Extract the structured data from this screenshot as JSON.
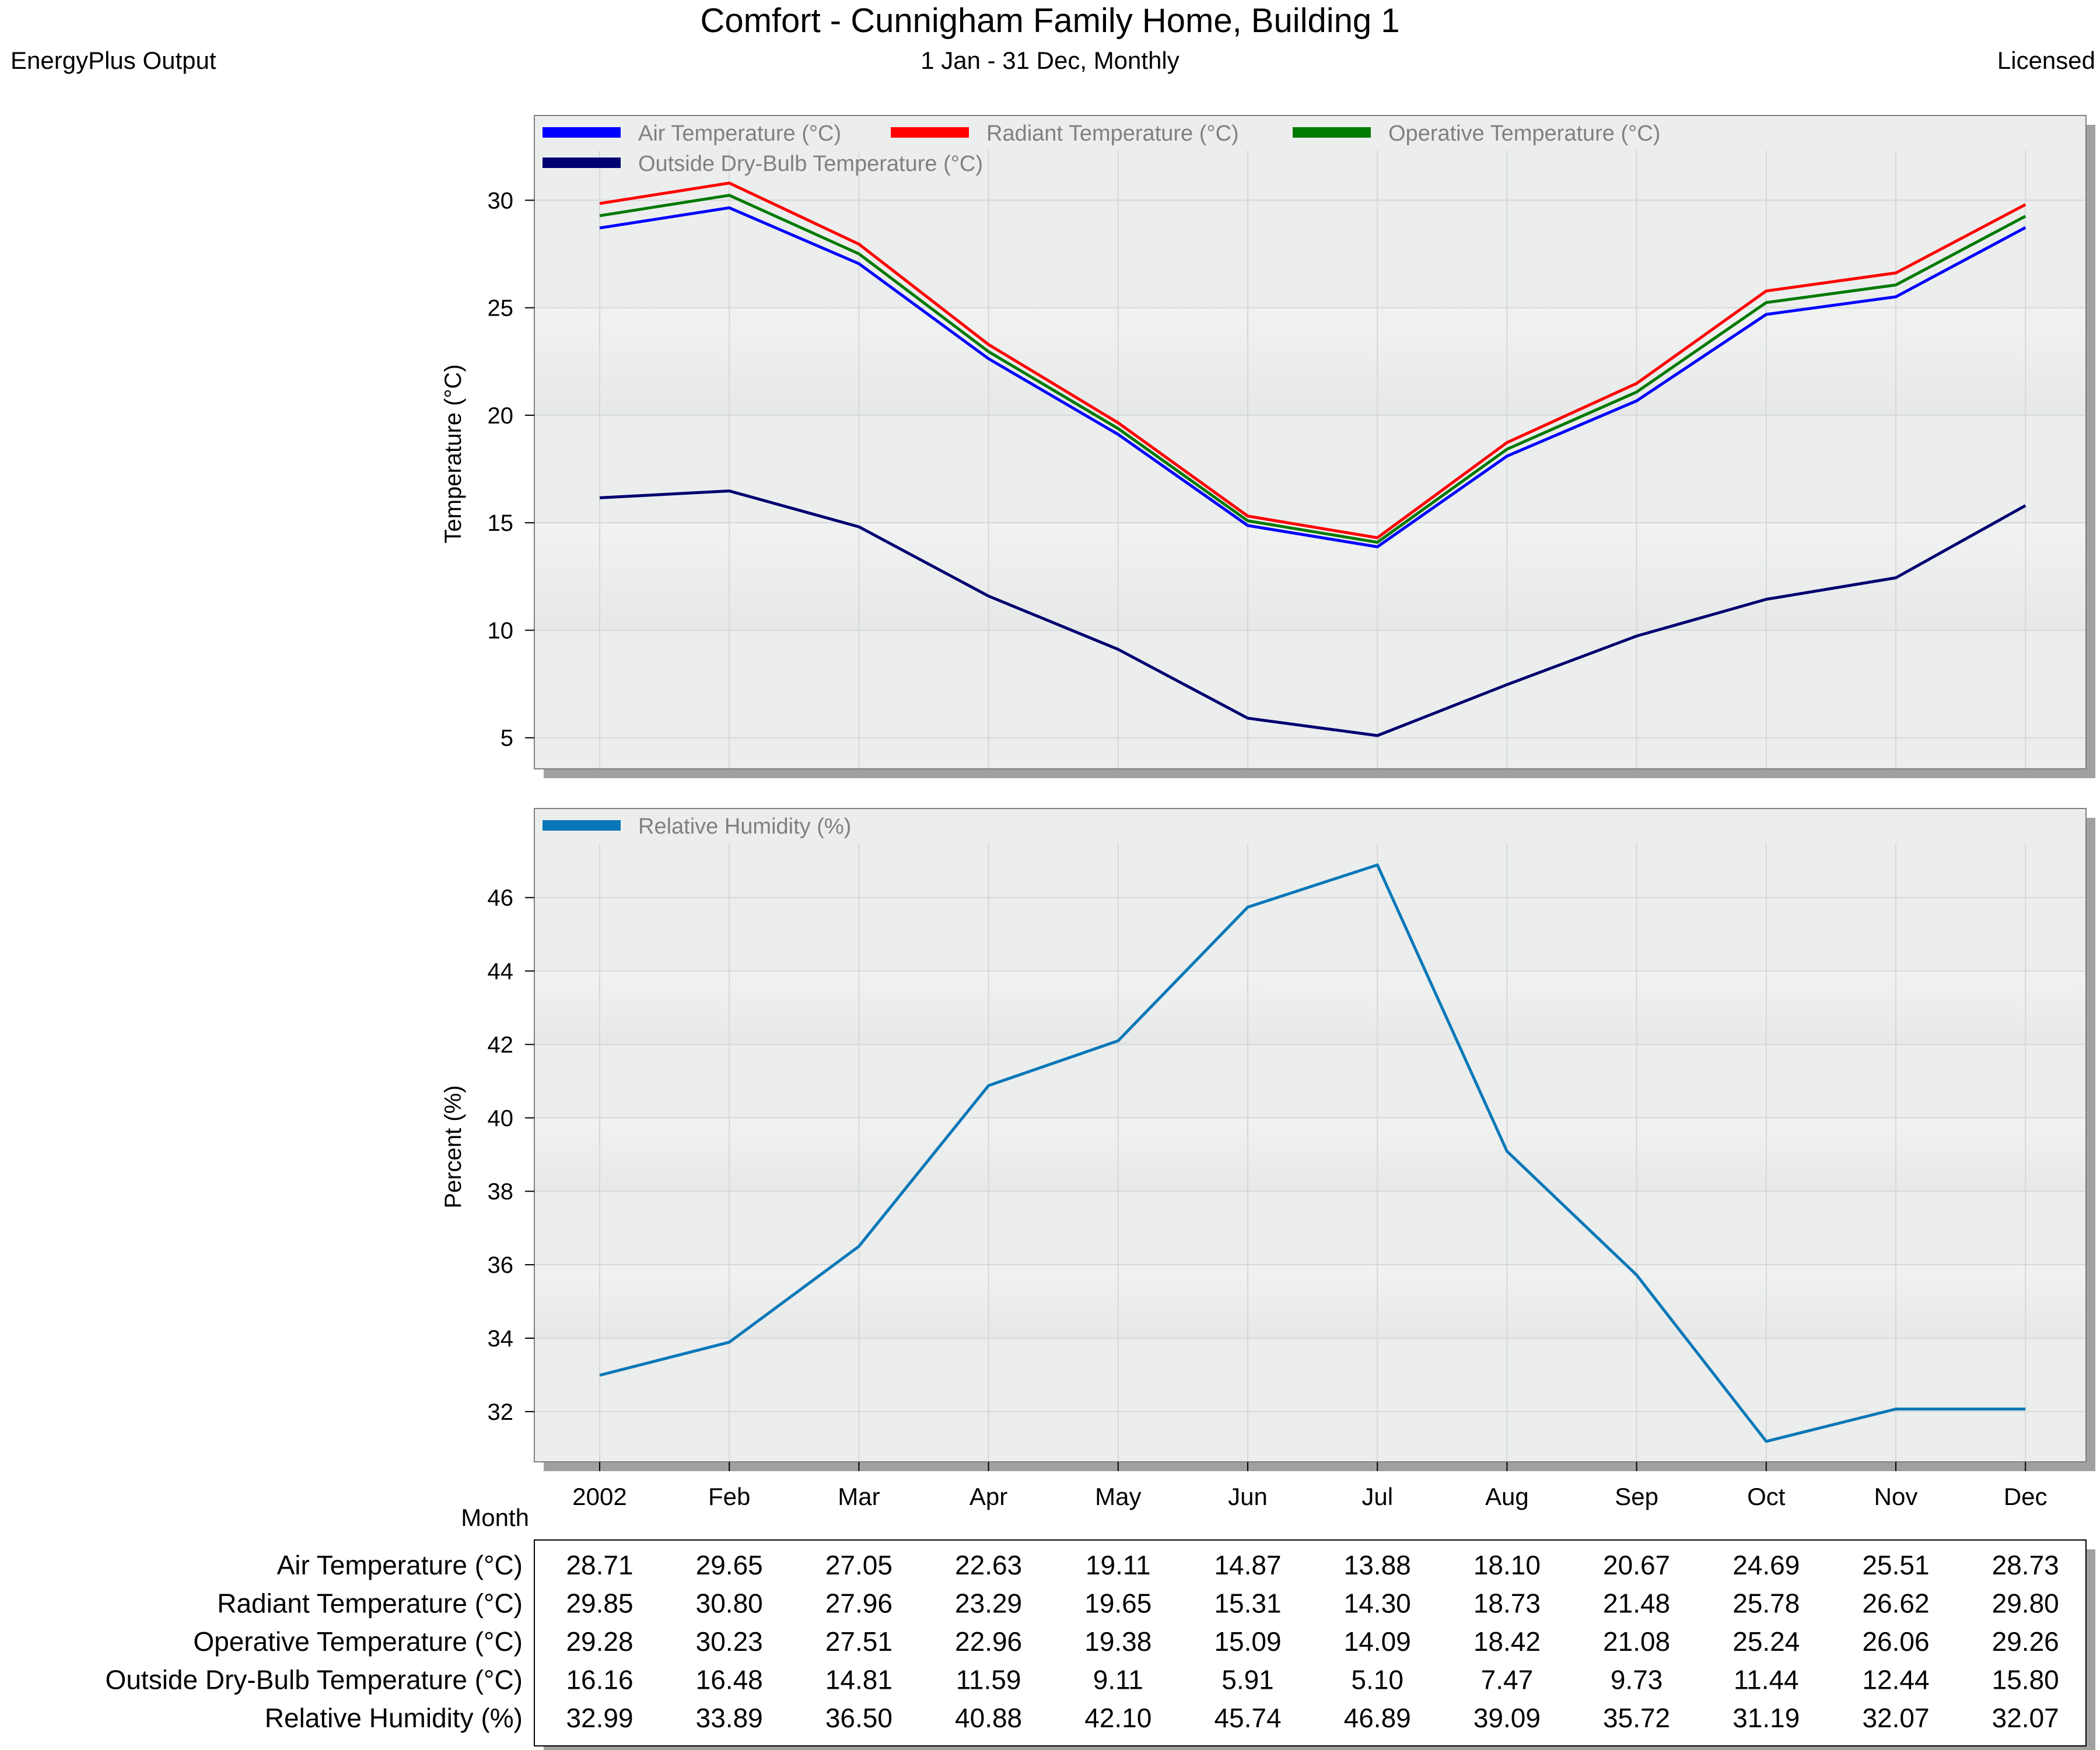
{
  "header": {
    "title": "Comfort - Cunnigham Family Home, Building 1",
    "subtitle": "1 Jan - 31 Dec, Monthly",
    "left_note": "EnergyPlus Output",
    "right_note": "Licensed"
  },
  "colors": {
    "air": "#0000ff",
    "radiant": "#ff0000",
    "operative": "#007a00",
    "outside": "#000070",
    "humidity": "#0a78b8",
    "plot_bg": "#eceeee",
    "shadow": "#a0a0a0"
  },
  "chart_data": [
    {
      "type": "line",
      "categories": [
        "2002",
        "Feb",
        "Mar",
        "Apr",
        "May",
        "Jun",
        "Jul",
        "Aug",
        "Sep",
        "Oct",
        "Nov",
        "Dec"
      ],
      "ylabel": "Temperature (°C)",
      "ylim": [
        3.5,
        31.5
      ],
      "yticks": [
        5,
        10,
        15,
        20,
        25,
        30
      ],
      "grid": true,
      "legend_position": "top-left",
      "series": [
        {
          "name": "Air Temperature (°C)",
          "color_key": "air",
          "values": [
            28.71,
            29.65,
            27.05,
            22.63,
            19.11,
            14.87,
            13.88,
            18.1,
            20.67,
            24.69,
            25.51,
            28.73
          ]
        },
        {
          "name": "Radiant Temperature (°C)",
          "color_key": "radiant",
          "values": [
            29.85,
            30.8,
            27.96,
            23.29,
            19.65,
            15.31,
            14.3,
            18.73,
            21.48,
            25.78,
            26.62,
            29.8
          ]
        },
        {
          "name": "Operative Temperature (°C)",
          "color_key": "operative",
          "values": [
            29.28,
            30.23,
            27.51,
            22.96,
            19.38,
            15.09,
            14.09,
            18.42,
            21.08,
            25.24,
            26.06,
            29.26
          ]
        },
        {
          "name": "Outside Dry-Bulb Temperature (°C)",
          "color_key": "outside",
          "values": [
            16.16,
            16.48,
            14.81,
            11.59,
            9.11,
            5.91,
            5.1,
            7.47,
            9.73,
            11.44,
            12.44,
            15.8
          ]
        }
      ]
    },
    {
      "type": "line",
      "categories": [
        "2002",
        "Feb",
        "Mar",
        "Apr",
        "May",
        "Jun",
        "Jul",
        "Aug",
        "Sep",
        "Oct",
        "Nov",
        "Dec"
      ],
      "xlabel": "Month",
      "ylabel": "Percent (%)",
      "ylim": [
        30.6,
        47.6
      ],
      "yticks": [
        32,
        34,
        36,
        38,
        40,
        42,
        44,
        46
      ],
      "grid": true,
      "legend_position": "top-left",
      "series": [
        {
          "name": "Relative Humidity (%)",
          "color_key": "humidity",
          "values": [
            32.99,
            33.89,
            36.5,
            40.88,
            42.1,
            45.74,
            46.89,
            39.09,
            35.72,
            31.19,
            32.07,
            32.07
          ]
        }
      ]
    },
    {
      "type": "table",
      "rows": [
        {
          "label": "Air Temperature (°C)",
          "values": [
            "28.71",
            "29.65",
            "27.05",
            "22.63",
            "19.11",
            "14.87",
            "13.88",
            "18.10",
            "20.67",
            "24.69",
            "25.51",
            "28.73"
          ]
        },
        {
          "label": "Radiant Temperature (°C)",
          "values": [
            "29.85",
            "30.80",
            "27.96",
            "23.29",
            "19.65",
            "15.31",
            "14.30",
            "18.73",
            "21.48",
            "25.78",
            "26.62",
            "29.80"
          ]
        },
        {
          "label": "Operative Temperature (°C)",
          "values": [
            "29.28",
            "30.23",
            "27.51",
            "22.96",
            "19.38",
            "15.09",
            "14.09",
            "18.42",
            "21.08",
            "25.24",
            "26.06",
            "29.26"
          ]
        },
        {
          "label": "Outside Dry-Bulb Temperature (°C)",
          "values": [
            "16.16",
            "16.48",
            "14.81",
            "11.59",
            "9.11",
            "5.91",
            "5.10",
            "7.47",
            "9.73",
            "11.44",
            "12.44",
            "15.80"
          ]
        },
        {
          "label": "Relative Humidity (%)",
          "values": [
            "32.99",
            "33.89",
            "36.50",
            "40.88",
            "42.10",
            "45.74",
            "46.89",
            "39.09",
            "35.72",
            "31.19",
            "32.07",
            "32.07"
          ]
        }
      ]
    }
  ]
}
